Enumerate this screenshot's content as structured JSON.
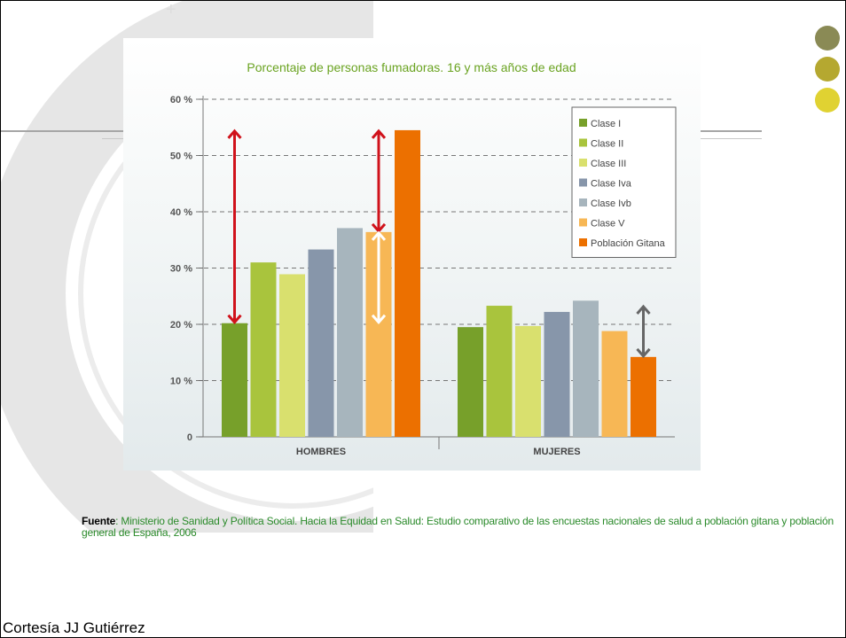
{
  "slide": {
    "colors": {
      "circle_1": "#8a8a55",
      "circle_2": "#b5a830",
      "circle_3": "#e0d232"
    },
    "source_label": "Fuente",
    "source_sep": ": ",
    "source_text": "Ministerio de Sanidad y Política Social. Hacia la Equidad en Salud: Estudio comparativo de las encuestas nacionales de salud a población gitana y población general de España, 2006",
    "credit": "Cortesía JJ Gutiérrez"
  },
  "chart_data": {
    "type": "bar",
    "title": "Porcentaje de personas fumadoras. 16 y más años de edad",
    "categories": [
      "HOMBRES",
      "MUJERES"
    ],
    "ylim": [
      0,
      60
    ],
    "yticks": [
      0,
      10,
      20,
      30,
      40,
      50,
      60
    ],
    "ytick_labels": [
      "0",
      "10 %",
      "20 %",
      "30 %",
      "40 %",
      "50 %",
      "60 %"
    ],
    "grid": "horizontal-dashed",
    "legend_position": "top-right",
    "series": [
      {
        "name": "Clase I",
        "color": "#77a02a",
        "values": [
          20.2,
          19.5
        ]
      },
      {
        "name": "Clase II",
        "color": "#a9c43d",
        "values": [
          31.0,
          23.3
        ]
      },
      {
        "name": "Clase III",
        "color": "#d9e06e",
        "values": [
          28.9,
          19.7
        ]
      },
      {
        "name": "Clase Iva",
        "color": "#8796aa",
        "values": [
          33.3,
          22.2
        ]
      },
      {
        "name": "Clase Ivb",
        "color": "#a7b5bd",
        "values": [
          37.1,
          24.2
        ]
      },
      {
        "name": "Clase V",
        "color": "#f7b755",
        "values": [
          36.4,
          18.8
        ]
      },
      {
        "name": "Población Gitana",
        "color": "#ec7000",
        "values": [
          54.5,
          14.2
        ]
      }
    ],
    "annotations": [
      {
        "type": "double-arrow",
        "color": "#d0121b",
        "category": "HOMBRES",
        "series": "Clase I",
        "from": 20.2,
        "to": 54.5
      },
      {
        "type": "double-arrow",
        "color": "#d0121b",
        "category": "HOMBRES",
        "series": "Clase V",
        "from": 36.4,
        "to": 54.5
      },
      {
        "type": "double-arrow",
        "color": "#ffffff",
        "category": "HOMBRES",
        "series": "Clase V",
        "from": 20.2,
        "to": 36.4
      },
      {
        "type": "double-arrow",
        "color": "#666666",
        "category": "MUJERES",
        "series": "Población Gitana",
        "from": 14.2,
        "to": 23.3
      }
    ]
  }
}
